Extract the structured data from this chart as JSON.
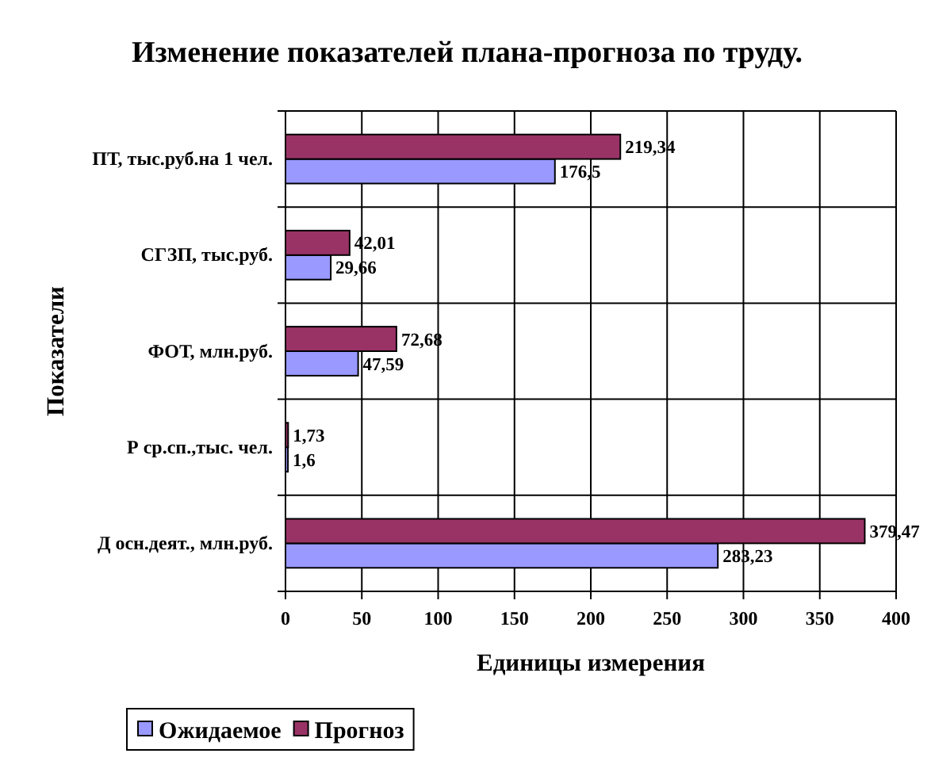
{
  "chart_data": {
    "type": "bar",
    "orientation": "horizontal",
    "title": "Изменение показателей плана-прогноза по труду.",
    "xlabel": "Единицы измерения",
    "ylabel": "Показатели",
    "categories": [
      "ПТ, тыс.руб.на 1 чел.",
      "СГЗП, тыс.руб.",
      "ФОТ, млн.руб.",
      "Р ср.сп.,тыс. чел.",
      "Д осн.деят., млн.руб."
    ],
    "series": [
      {
        "name": "Ожидаемое",
        "color": "#9999ff",
        "values": [
          176.5,
          29.66,
          47.59,
          1.6,
          283.23
        ],
        "value_labels": [
          "176,5",
          "29,66",
          "47,59",
          "1,6",
          "283,23"
        ]
      },
      {
        "name": "Прогноз",
        "color": "#993366",
        "values": [
          219.34,
          42.01,
          72.68,
          1.73,
          379.47
        ],
        "value_labels": [
          "219,34",
          "42,01",
          "72,68",
          "1,73",
          "379,47"
        ]
      }
    ],
    "xlim": [
      0,
      400
    ],
    "xticks": [
      0,
      50,
      100,
      150,
      200,
      250,
      300,
      350,
      400
    ],
    "grid": true,
    "legend": "bottom left"
  }
}
